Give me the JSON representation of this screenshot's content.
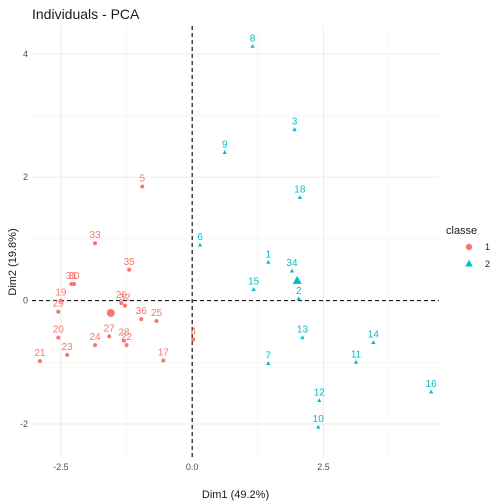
{
  "chart_data": {
    "type": "scatter",
    "title": "Individuals - PCA",
    "xlabel": "Dim1 (49.2%)",
    "ylabel": "Dim2 (19.8%)",
    "xlim": [
      -3.05,
      4.7
    ],
    "ylim": [
      -2.55,
      4.45
    ],
    "x_ticks": [
      -2.5,
      0.0,
      2.5
    ],
    "x_tick_labels": [
      "-2.5",
      "0.0",
      "2.5"
    ],
    "y_ticks": [
      -2,
      0,
      2,
      4
    ],
    "y_tick_labels": [
      "-2",
      "0",
      "2",
      "4"
    ],
    "grid": true,
    "reference_lines": {
      "x": 0,
      "y": 0,
      "style": "dashed"
    },
    "legend": {
      "title": "classe",
      "placement": "right",
      "entries": [
        "1",
        "2"
      ]
    },
    "colors": {
      "1": "#F8766D",
      "2": "#00BFC4"
    },
    "series": [
      {
        "name": "1",
        "marker": "circle",
        "points": [
          {
            "label": "5",
            "x": -0.95,
            "y": 1.85
          },
          {
            "label": "33",
            "x": -1.85,
            "y": 0.93
          },
          {
            "label": "35",
            "x": -1.2,
            "y": 0.5
          },
          {
            "label": "31",
            "x": -2.3,
            "y": 0.27
          },
          {
            "label": "30",
            "x": -2.25,
            "y": 0.27
          },
          {
            "label": "19",
            "x": -2.5,
            "y": 0.0
          },
          {
            "label": "29",
            "x": -2.55,
            "y": -0.18
          },
          {
            "label": "26",
            "x": -1.35,
            "y": -0.04
          },
          {
            "label": "32",
            "x": -1.28,
            "y": -0.08
          },
          {
            "label": "36",
            "x": -0.97,
            "y": -0.3
          },
          {
            "label": "25",
            "x": -0.68,
            "y": -0.33
          },
          {
            "label": "27",
            "x": -1.58,
            "y": -0.58
          },
          {
            "label": "28",
            "x": -1.3,
            "y": -0.65
          },
          {
            "label": "22",
            "x": -1.25,
            "y": -0.72
          },
          {
            "label": "24",
            "x": -1.85,
            "y": -0.72
          },
          {
            "label": "20",
            "x": -2.55,
            "y": -0.6
          },
          {
            "label": "23",
            "x": -2.38,
            "y": -0.88
          },
          {
            "label": "21",
            "x": -2.9,
            "y": -0.98
          },
          {
            "label": "17",
            "x": -0.55,
            "y": -0.97
          },
          {
            "label": "4",
            "x": 0.02,
            "y": -0.63
          }
        ],
        "centroid": {
          "x": -1.55,
          "y": -0.2
        }
      },
      {
        "name": "2",
        "marker": "triangle",
        "points": [
          {
            "label": "8",
            "x": 1.15,
            "y": 4.12
          },
          {
            "label": "3",
            "x": 1.95,
            "y": 2.77
          },
          {
            "label": "9",
            "x": 0.62,
            "y": 2.4
          },
          {
            "label": "18",
            "x": 2.05,
            "y": 1.67
          },
          {
            "label": "6",
            "x": 0.15,
            "y": 0.9
          },
          {
            "label": "1",
            "x": 1.45,
            "y": 0.62
          },
          {
            "label": "34",
            "x": 1.9,
            "y": 0.48
          },
          {
            "label": "15",
            "x": 1.17,
            "y": 0.18
          },
          {
            "label": "2",
            "x": 2.03,
            "y": 0.03
          },
          {
            "label": "13",
            "x": 2.1,
            "y": -0.6
          },
          {
            "label": "14",
            "x": 3.45,
            "y": -0.68
          },
          {
            "label": "11",
            "x": 3.12,
            "y": -1.0
          },
          {
            "label": "7",
            "x": 1.45,
            "y": -1.02
          },
          {
            "label": "16",
            "x": 4.55,
            "y": -1.48
          },
          {
            "label": "12",
            "x": 2.42,
            "y": -1.62
          },
          {
            "label": "10",
            "x": 2.4,
            "y": -2.05
          }
        ],
        "centroid": {
          "x": 2.0,
          "y": 0.32
        }
      }
    ]
  }
}
